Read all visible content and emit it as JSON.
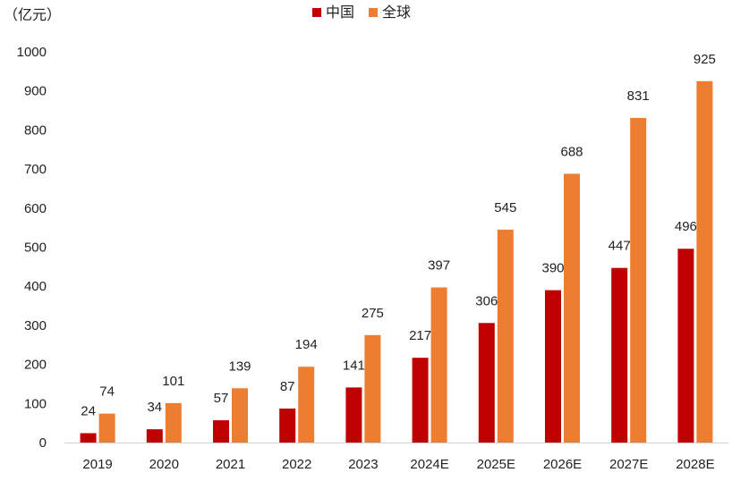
{
  "chart_data": {
    "type": "bar",
    "unit_label": "（亿元）",
    "categories": [
      "2019",
      "2020",
      "2021",
      "2022",
      "2023",
      "2024E",
      "2025E",
      "2026E",
      "2027E",
      "2028E"
    ],
    "series": [
      {
        "name": "中国",
        "color": "#C00000",
        "values": [
          24,
          34,
          57,
          87,
          141,
          217,
          306,
          390,
          447,
          496
        ]
      },
      {
        "name": "全球",
        "color": "#ED7D31",
        "values": [
          74,
          101,
          139,
          194,
          275,
          397,
          545,
          688,
          831,
          925
        ]
      }
    ],
    "ylim": [
      0,
      1000
    ],
    "yticks": [
      0,
      100,
      200,
      300,
      400,
      500,
      600,
      700,
      800,
      900,
      1000
    ],
    "grid": false,
    "legend_position": "top-center",
    "show_data_labels": true
  }
}
